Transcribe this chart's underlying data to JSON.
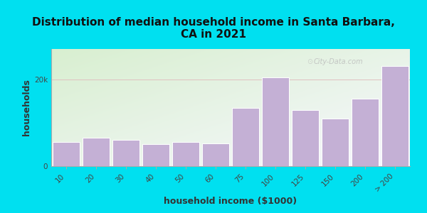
{
  "title": "Distribution of median household income in Santa Barbara,\nCA in 2021",
  "xlabel": "household income ($1000)",
  "ylabel": "households",
  "categories": [
    "10",
    "20",
    "30",
    "40",
    "50",
    "60",
    "75",
    "100",
    "125",
    "150",
    "200",
    "> 200"
  ],
  "values": [
    5500,
    6500,
    6000,
    5000,
    5500,
    5300,
    13500,
    20500,
    13000,
    11000,
    15500,
    23000
  ],
  "bar_color": "#c4b0d5",
  "bar_edge_color": "#ffffff",
  "bg_outer_color": "#00e0f0",
  "bg_inner_top_left_color": "#d8efd0",
  "bg_inner_bottom_right_color": "#f0f0f8",
  "ytick_value": 20000,
  "ylim_max": 27000,
  "title_fontsize": 11,
  "axis_label_fontsize": 9,
  "tick_fontsize": 7.5,
  "watermark_text": "City-Data.com",
  "grid_color": "#e0c0c0",
  "spine_color": "#aaaaaa"
}
